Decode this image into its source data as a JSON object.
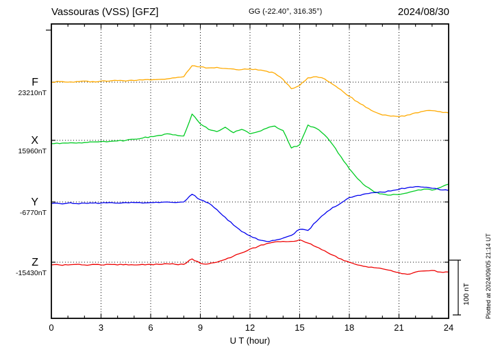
{
  "header": {
    "station": "Vassouras (VSS)  [GFZ]",
    "coords": "GG (-22.40°, 316.35°)",
    "date": "2024/08/30"
  },
  "axes": {
    "x_ticks": [
      "0",
      "3",
      "6",
      "9",
      "12",
      "15",
      "18",
      "21",
      "24"
    ],
    "x_label": "U T (hour)"
  },
  "scale_bar": {
    "label": "100 nT",
    "nT": 100
  },
  "footnote": "Plotted at 2024/09/05 21:14 UT",
  "chart_data": {
    "type": "line",
    "title": "Vassouras (VSS) [GFZ] magnetogram 2024/08/30",
    "x_range": [
      0,
      24
    ],
    "x_step_hours": 0.5,
    "xlabel": "U T (hour)",
    "grid": true,
    "series": [
      {
        "name": "F",
        "label": "F",
        "base_value_label": "23210nT",
        "base_value_nT": 23210,
        "color": "#FFAA00",
        "offsets_nT": [
          0,
          1,
          0,
          1,
          2,
          1,
          2,
          2,
          3,
          2,
          3,
          4,
          4,
          5,
          6,
          8,
          10,
          30,
          28,
          26,
          27,
          25,
          24,
          23,
          24,
          22,
          20,
          16,
          5,
          -12,
          -6,
          8,
          10,
          6,
          -4,
          -14,
          -26,
          -36,
          -46,
          -54,
          -60,
          -62,
          -63,
          -60,
          -56,
          -53,
          -52,
          -54,
          -56
        ]
      },
      {
        "name": "X",
        "label": "X",
        "base_value_label": "15960nT",
        "base_value_nT": 15960,
        "color": "#00CC22",
        "offsets_nT": [
          -6,
          -6,
          -5,
          -5,
          -4,
          -3,
          -2,
          -2,
          -1,
          0,
          2,
          4,
          7,
          9,
          12,
          10,
          8,
          48,
          30,
          20,
          16,
          24,
          14,
          20,
          12,
          16,
          22,
          26,
          18,
          -14,
          -8,
          28,
          22,
          10,
          -8,
          -30,
          -52,
          -70,
          -84,
          -94,
          -98,
          -100,
          -99,
          -96,
          -92,
          -89,
          -91,
          -86,
          -80
        ]
      },
      {
        "name": "Y",
        "label": "Y",
        "base_value_label": "-6770nT",
        "base_value_nT": -6770,
        "color": "#0000EE",
        "offsets_nT": [
          -3,
          -3,
          -2,
          -3,
          -2,
          -2,
          -2,
          -1,
          -2,
          -1,
          -1,
          -2,
          -1,
          -1,
          0,
          -1,
          0,
          14,
          4,
          -2,
          -14,
          -28,
          -42,
          -54,
          -62,
          -69,
          -72,
          -70,
          -66,
          -61,
          -50,
          -52,
          -36,
          -22,
          -10,
          -2,
          8,
          12,
          15,
          17,
          18,
          20,
          23,
          26,
          28,
          27,
          25,
          22,
          21
        ]
      },
      {
        "name": "Z",
        "label": "Z",
        "base_value_label": "-15430nT",
        "base_value_nT": -15430,
        "color": "#EE0000",
        "offsets_nT": [
          -5,
          -5,
          -5,
          -4,
          -5,
          -4,
          -5,
          -4,
          -5,
          -4,
          -5,
          -4,
          -4,
          -4,
          -3,
          -4,
          -4,
          6,
          -2,
          -3,
          0,
          5,
          11,
          17,
          24,
          29,
          34,
          37,
          38,
          38,
          41,
          35,
          28,
          21,
          13,
          6,
          0,
          -5,
          -8,
          -10,
          -12,
          -15,
          -19,
          -22,
          -18,
          -16,
          -15,
          -18,
          -18
        ]
      }
    ]
  }
}
